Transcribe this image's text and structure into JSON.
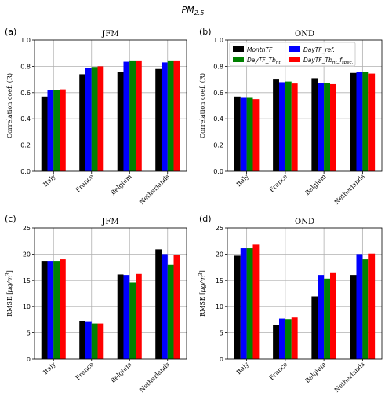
{
  "figure": {
    "suptitle_main": "PM",
    "suptitle_sub": "2.5"
  },
  "legend": [
    {
      "label": "MonthTF",
      "color": "#000000"
    },
    {
      "label": "DayTF_ref.",
      "color": "#0000ff"
    },
    {
      "label": "DayTF_Tb",
      "sub": "fit",
      "color": "#008000"
    },
    {
      "label": "DayTF_Tb",
      "sub": "fit",
      "label2": "_f",
      "sub2": "spec.",
      "color": "#ff0000"
    }
  ],
  "chart_data": [
    {
      "panel_label": "(a)",
      "type": "bar",
      "title": "JFM",
      "ylabel": "Correlation coef. (R)",
      "categories": [
        "Italy",
        "France",
        "Belgium",
        "Netherlands"
      ],
      "ylim": [
        0,
        1.0
      ],
      "yticks": [
        "0.0",
        "0.2",
        "0.4",
        "0.6",
        "0.8",
        "1.0"
      ],
      "grid": true,
      "series": [
        {
          "name": "MonthTF",
          "color": "#000000",
          "values": [
            0.57,
            0.74,
            0.76,
            0.78
          ]
        },
        {
          "name": "DayTF_ref.",
          "color": "#0000ff",
          "values": [
            0.62,
            0.785,
            0.835,
            0.83
          ]
        },
        {
          "name": "DayTF_Tbfit",
          "color": "#008000",
          "values": [
            0.62,
            0.795,
            0.845,
            0.845
          ]
        },
        {
          "name": "DayTF_Tbfit_fspec.",
          "color": "#ff0000",
          "values": [
            0.625,
            0.8,
            0.845,
            0.845
          ]
        }
      ]
    },
    {
      "panel_label": "(b)",
      "type": "bar",
      "title": "OND",
      "ylabel": "Correlation coef. (R)",
      "categories": [
        "Italy",
        "France",
        "Belgium",
        "Netherlands"
      ],
      "ylim": [
        0,
        1.0
      ],
      "yticks": [
        "0.0",
        "0.2",
        "0.4",
        "0.6",
        "0.8",
        "1.0"
      ],
      "grid": true,
      "legend_position": "top-right",
      "series": [
        {
          "name": "MonthTF",
          "color": "#000000",
          "values": [
            0.57,
            0.7,
            0.71,
            0.75
          ]
        },
        {
          "name": "DayTF_ref.",
          "color": "#0000ff",
          "values": [
            0.56,
            0.68,
            0.675,
            0.755
          ]
        },
        {
          "name": "DayTF_Tbfit",
          "color": "#008000",
          "values": [
            0.56,
            0.685,
            0.675,
            0.755
          ]
        },
        {
          "name": "DayTF_Tbfit_fspec.",
          "color": "#ff0000",
          "values": [
            0.55,
            0.67,
            0.665,
            0.745
          ]
        }
      ]
    },
    {
      "panel_label": "(c)",
      "type": "bar",
      "title": "JFM",
      "ylabel": "RMSE [µg/m³]",
      "categories": [
        "Italy",
        "France",
        "Belgium",
        "Netherlands"
      ],
      "ylim": [
        0,
        25
      ],
      "yticks": [
        "0",
        "5",
        "10",
        "15",
        "20",
        "25"
      ],
      "grid": true,
      "series": [
        {
          "name": "MonthTF",
          "color": "#000000",
          "values": [
            18.7,
            7.3,
            16.1,
            20.9
          ]
        },
        {
          "name": "DayTF_ref.",
          "color": "#0000ff",
          "values": [
            18.7,
            7.1,
            16.0,
            20.0
          ]
        },
        {
          "name": "DayTF_Tbfit",
          "color": "#008000",
          "values": [
            18.7,
            6.8,
            14.6,
            18.0
          ]
        },
        {
          "name": "DayTF_Tbfit_fspec.",
          "color": "#ff0000",
          "values": [
            19.0,
            6.8,
            16.2,
            19.8
          ]
        }
      ]
    },
    {
      "panel_label": "(d)",
      "type": "bar",
      "title": "OND",
      "ylabel": "RMSE [µg/m³]",
      "categories": [
        "Italy",
        "France",
        "Belgium",
        "Netherlands"
      ],
      "ylim": [
        0,
        25
      ],
      "yticks": [
        "0",
        "5",
        "10",
        "15",
        "20",
        "25"
      ],
      "grid": true,
      "series": [
        {
          "name": "MonthTF",
          "color": "#000000",
          "values": [
            19.7,
            6.5,
            11.9,
            16.0
          ]
        },
        {
          "name": "DayTF_ref.",
          "color": "#0000ff",
          "values": [
            21.1,
            7.7,
            16.0,
            20.0
          ]
        },
        {
          "name": "DayTF_Tbfit",
          "color": "#008000",
          "values": [
            21.1,
            7.6,
            15.3,
            19.0
          ]
        },
        {
          "name": "DayTF_Tbfit_fspec.",
          "color": "#ff0000",
          "values": [
            21.8,
            7.9,
            16.5,
            20.1
          ]
        }
      ]
    }
  ]
}
